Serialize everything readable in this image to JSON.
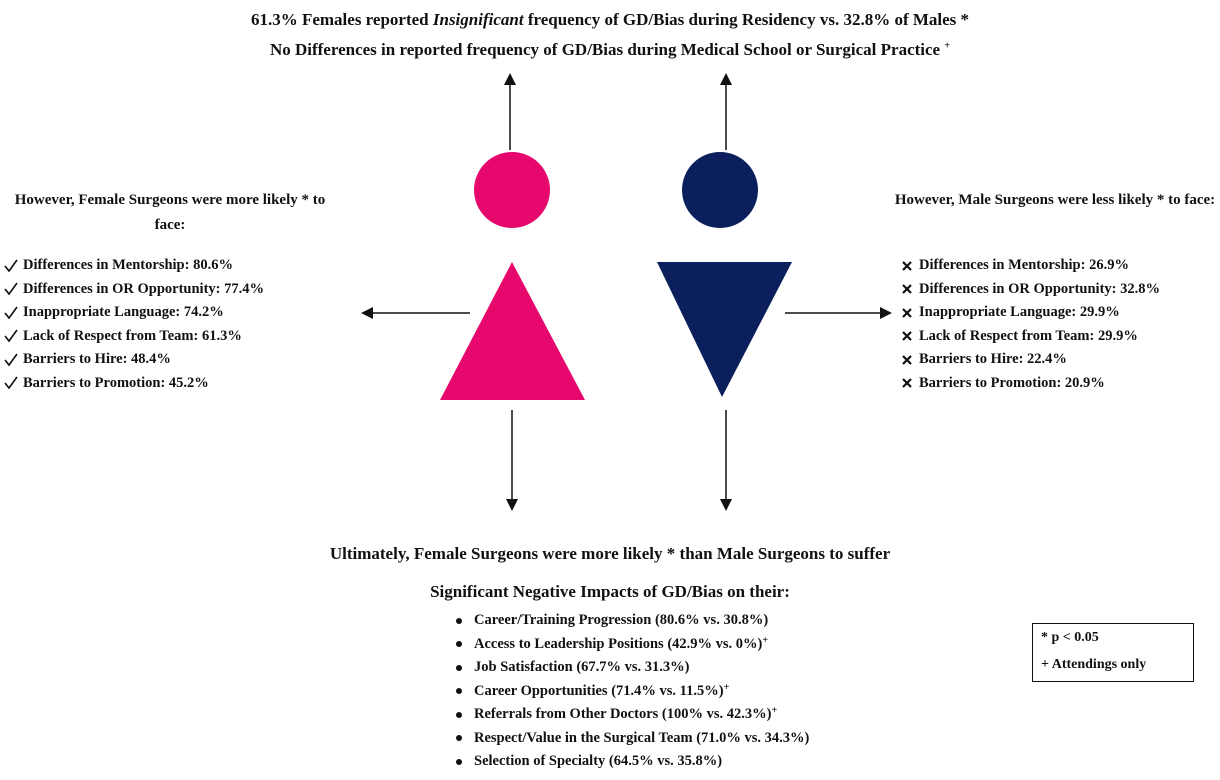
{
  "header": {
    "line1": [
      "61.3% Females reported ",
      "Insignificant",
      " frequency of GD/Bias during Residency vs. 32.8% of Males *"
    ],
    "line2": {
      "text": "No Differences in reported frequency of GD/Bias during Medical School or Surgical Practice",
      "mark": "+"
    }
  },
  "female": {
    "heading": "However, Female Surgeons were more likely * to face:",
    "items": [
      "Differences in Mentorship: 80.6%",
      "Differences in OR Opportunity: 77.4%",
      "Inappropriate Language: 74.2%",
      "Lack of Respect from Team: 61.3%",
      "Barriers to Hire: 48.4%",
      "Barriers to Promotion: 45.2%"
    ]
  },
  "male": {
    "heading": "However, Male Surgeons were less likely * to face:",
    "items": [
      "Differences in Mentorship: 26.9%",
      "Differences in OR Opportunity: 32.8%",
      "Inappropriate Language: 29.9%",
      "Lack of Respect from Team: 29.9%",
      "Barriers to Hire: 22.4%",
      "Barriers to Promotion: 20.9%"
    ]
  },
  "outcome": {
    "heading": "Ultimately, Female Surgeons were more likely * than Male Surgeons to suffer",
    "subheading": "Significant Negative Impacts of GD/Bias on their:",
    "items": [
      {
        "text": "Career/Training Progression (80.6% vs. 30.8%)"
      },
      {
        "text": "Access to Leadership Positions (42.9% vs. 0%)",
        "mark": "+"
      },
      {
        "text": "Job Satisfaction (67.7% vs. 31.3%)"
      },
      {
        "text": "Career Opportunities (71.4% vs. 11.5%)",
        "mark": "+"
      },
      {
        "text": "Referrals from Other Doctors (100% vs. 42.3%)",
        "mark": "+"
      },
      {
        "text": "Respect/Value in the Surgical Team (71.0% vs. 34.3%)"
      },
      {
        "text": "Selection of Specialty (64.5% vs. 35.8%)"
      }
    ]
  },
  "legend": [
    "* p < 0.05",
    "+ Attendings only"
  ]
}
